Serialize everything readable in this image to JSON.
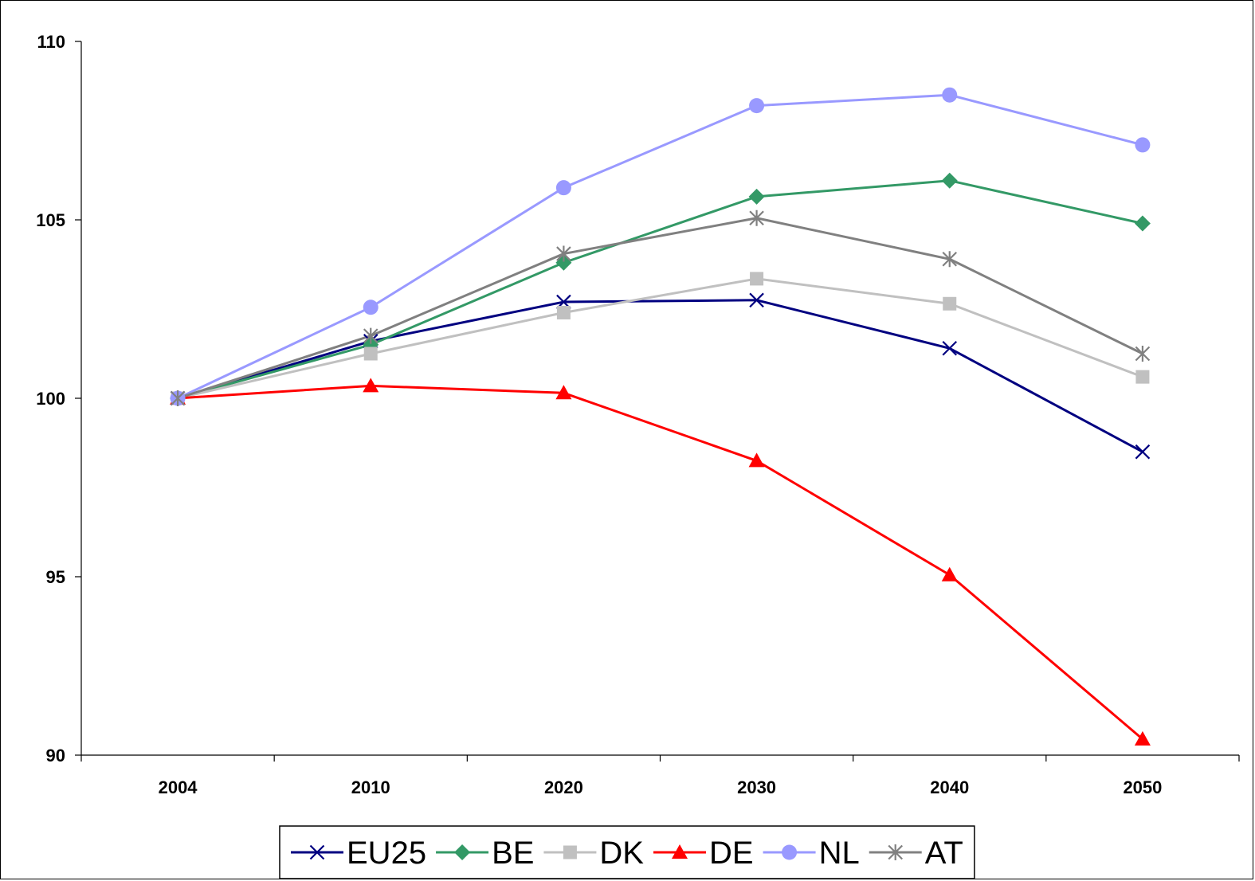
{
  "chart_data": {
    "type": "line",
    "title": "",
    "xlabel": "",
    "ylabel": "",
    "categories": [
      "2004",
      "2010",
      "2020",
      "2030",
      "2040",
      "2050"
    ],
    "ylim": [
      90,
      110
    ],
    "yticks": [
      90,
      95,
      100,
      105,
      110
    ],
    "grid": false,
    "legend_position": "bottom",
    "series": [
      {
        "name": "EU25",
        "color": "#000080",
        "marker": "x",
        "values": [
          100,
          101.6,
          102.7,
          102.75,
          101.4,
          98.5
        ]
      },
      {
        "name": "BE",
        "color": "#339966",
        "marker": "diamond",
        "values": [
          100,
          101.5,
          103.8,
          105.65,
          106.1,
          104.9
        ]
      },
      {
        "name": "DK",
        "color": "#C0C0C0",
        "marker": "square",
        "values": [
          100,
          101.25,
          102.4,
          103.35,
          102.65,
          100.6
        ]
      },
      {
        "name": "DE",
        "color": "#FF0000",
        "marker": "triangle",
        "values": [
          100,
          100.35,
          100.15,
          98.25,
          95.05,
          90.45
        ]
      },
      {
        "name": "NL",
        "color": "#9999FF",
        "marker": "circle",
        "values": [
          100,
          102.55,
          105.9,
          108.2,
          108.5,
          107.1
        ]
      },
      {
        "name": "AT",
        "color": "#808080",
        "marker": "asterisk",
        "values": [
          100,
          101.75,
          104.05,
          105.05,
          103.9,
          101.25
        ]
      }
    ]
  }
}
